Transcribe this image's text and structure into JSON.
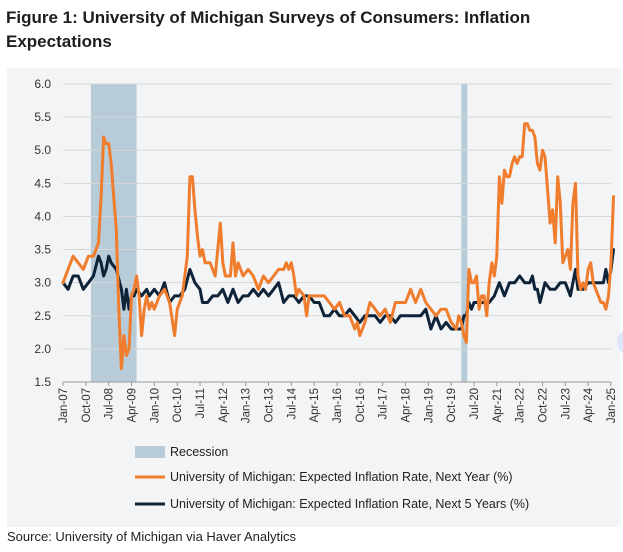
{
  "title": "Figure 1: University of Michigan Surveys of Consumers: Inflation Expectations",
  "source": "Source: University of Michigan via Haver Analytics",
  "colors": {
    "next_year": "#ef7d2d",
    "next_5_years": "#0e2238",
    "recession": "#b7ccd8",
    "grid": "#d6d6d6",
    "background": "#f3f4f6"
  },
  "chart_data": {
    "type": "line",
    "title": "Figure 1: University of Michigan Surveys of Consumers: Inflation Expectations",
    "xlabel": "",
    "ylabel": "",
    "ylim": [
      1.5,
      6.0
    ],
    "yticks": [
      "6.0",
      "5.5",
      "5.0",
      "4.5",
      "4.0",
      "3.5",
      "3.0",
      "2.5",
      "2.0",
      "1.5"
    ],
    "x_range": [
      "Jan-07",
      "Jan-25"
    ],
    "xticks": [
      "Jan-07",
      "Oct-07",
      "Jul-08",
      "Apr-09",
      "Jan-10",
      "Oct-10",
      "Jul-11",
      "Apr-12",
      "Jan-13",
      "Oct-13",
      "Jul-14",
      "Apr-15",
      "Jan-16",
      "Oct-16",
      "Jul-17",
      "Apr-18",
      "Jan-19",
      "Oct-19",
      "Jul-20",
      "Apr-21",
      "Jan-22",
      "Oct-22",
      "Jul-23",
      "Apr-24",
      "Jan-25"
    ],
    "grid": true,
    "legend": "bottom",
    "recessions": [
      {
        "label": "Recession",
        "start": "Dec-07",
        "end": "Jun-09"
      },
      {
        "label": "Recession",
        "start": "Feb-20",
        "end": "Apr-20"
      }
    ],
    "series": [
      {
        "name": "University of Michigan: Expected Inflation Rate, Next Year (%)",
        "points": [
          [
            "Jan-07",
            3.0
          ],
          [
            "Mar-07",
            3.2
          ],
          [
            "May-07",
            3.4
          ],
          [
            "Jul-07",
            3.3
          ],
          [
            "Sep-07",
            3.2
          ],
          [
            "Nov-07",
            3.4
          ],
          [
            "Jan-08",
            3.4
          ],
          [
            "Mar-08",
            3.6
          ],
          [
            "Apr-08",
            4.3
          ],
          [
            "May-08",
            5.2
          ],
          [
            "Jun-08",
            5.1
          ],
          [
            "Jul-08",
            5.1
          ],
          [
            "Aug-08",
            4.8
          ],
          [
            "Sep-08",
            4.3
          ],
          [
            "Oct-08",
            3.8
          ],
          [
            "Nov-08",
            2.6
          ],
          [
            "Dec-08",
            1.7
          ],
          [
            "Jan-09",
            2.2
          ],
          [
            "Feb-09",
            1.9
          ],
          [
            "Mar-09",
            2.0
          ],
          [
            "Apr-09",
            2.8
          ],
          [
            "May-09",
            2.9
          ],
          [
            "Jun-09",
            3.1
          ],
          [
            "Jul-09",
            2.8
          ],
          [
            "Aug-09",
            2.2
          ],
          [
            "Sep-09",
            2.6
          ],
          [
            "Oct-09",
            2.8
          ],
          [
            "Nov-09",
            2.6
          ],
          [
            "Dec-09",
            2.7
          ],
          [
            "Jan-10",
            2.6
          ],
          [
            "Mar-10",
            2.8
          ],
          [
            "May-10",
            2.9
          ],
          [
            "Jul-10",
            2.7
          ],
          [
            "Sep-10",
            2.2
          ],
          [
            "Oct-10",
            2.6
          ],
          [
            "Dec-10",
            2.8
          ],
          [
            "Feb-11",
            3.4
          ],
          [
            "Mar-11",
            4.6
          ],
          [
            "Apr-11",
            4.6
          ],
          [
            "May-11",
            4.1
          ],
          [
            "Jun-11",
            3.7
          ],
          [
            "Jul-11",
            3.4
          ],
          [
            "Aug-11",
            3.5
          ],
          [
            "Sep-11",
            3.3
          ],
          [
            "Nov-11",
            3.3
          ],
          [
            "Jan-12",
            3.1
          ],
          [
            "Mar-12",
            3.9
          ],
          [
            "Apr-12",
            3.3
          ],
          [
            "May-12",
            3.1
          ],
          [
            "Jul-12",
            3.1
          ],
          [
            "Aug-12",
            3.6
          ],
          [
            "Sep-12",
            3.1
          ],
          [
            "Oct-12",
            3.3
          ],
          [
            "Dec-12",
            3.1
          ],
          [
            "Feb-13",
            3.2
          ],
          [
            "Apr-13",
            3.1
          ],
          [
            "Jun-13",
            2.9
          ],
          [
            "Aug-13",
            3.1
          ],
          [
            "Oct-13",
            3.0
          ],
          [
            "Dec-13",
            3.1
          ],
          [
            "Feb-14",
            3.2
          ],
          [
            "Apr-14",
            3.2
          ],
          [
            "May-14",
            3.3
          ],
          [
            "Jun-14",
            3.2
          ],
          [
            "Jul-14",
            3.3
          ],
          [
            "Aug-14",
            3.1
          ],
          [
            "Sep-14",
            2.8
          ],
          [
            "Oct-14",
            2.9
          ],
          [
            "Dec-14",
            2.8
          ],
          [
            "Jan-15",
            2.5
          ],
          [
            "Feb-15",
            2.8
          ],
          [
            "Apr-15",
            2.8
          ],
          [
            "Jun-15",
            2.8
          ],
          [
            "Aug-15",
            2.8
          ],
          [
            "Oct-15",
            2.7
          ],
          [
            "Dec-15",
            2.6
          ],
          [
            "Feb-16",
            2.7
          ],
          [
            "Apr-16",
            2.5
          ],
          [
            "Jun-16",
            2.5
          ],
          [
            "Aug-16",
            2.3
          ],
          [
            "Sep-16",
            2.4
          ],
          [
            "Oct-16",
            2.2
          ],
          [
            "Dec-16",
            2.4
          ],
          [
            "Feb-17",
            2.7
          ],
          [
            "Apr-17",
            2.6
          ],
          [
            "Jun-17",
            2.5
          ],
          [
            "Aug-17",
            2.6
          ],
          [
            "Oct-17",
            2.4
          ],
          [
            "Dec-17",
            2.7
          ],
          [
            "Feb-18",
            2.7
          ],
          [
            "Apr-18",
            2.7
          ],
          [
            "Jun-18",
            2.9
          ],
          [
            "Aug-18",
            2.7
          ],
          [
            "Oct-18",
            2.9
          ],
          [
            "Nov-18",
            2.8
          ],
          [
            "Dec-18",
            2.7
          ],
          [
            "Feb-19",
            2.6
          ],
          [
            "Apr-19",
            2.5
          ],
          [
            "Jun-19",
            2.6
          ],
          [
            "Aug-19",
            2.6
          ],
          [
            "Oct-19",
            2.4
          ],
          [
            "Dec-19",
            2.3
          ],
          [
            "Jan-20",
            2.5
          ],
          [
            "Feb-20",
            2.4
          ],
          [
            "Mar-20",
            2.2
          ],
          [
            "Apr-20",
            2.1
          ],
          [
            "May-20",
            3.2
          ],
          [
            "Jun-20",
            3.0
          ],
          [
            "Jul-20",
            3.0
          ],
          [
            "Aug-20",
            3.1
          ],
          [
            "Sep-20",
            2.6
          ],
          [
            "Oct-20",
            2.8
          ],
          [
            "Nov-20",
            2.8
          ],
          [
            "Dec-20",
            2.5
          ],
          [
            "Jan-21",
            3.0
          ],
          [
            "Feb-21",
            3.3
          ],
          [
            "Mar-21",
            3.1
          ],
          [
            "Apr-21",
            3.4
          ],
          [
            "May-21",
            4.6
          ],
          [
            "Jun-21",
            4.2
          ],
          [
            "Jul-21",
            4.7
          ],
          [
            "Aug-21",
            4.6
          ],
          [
            "Sep-21",
            4.6
          ],
          [
            "Oct-21",
            4.8
          ],
          [
            "Nov-21",
            4.9
          ],
          [
            "Dec-21",
            4.8
          ],
          [
            "Jan-22",
            4.9
          ],
          [
            "Feb-22",
            4.9
          ],
          [
            "Mar-22",
            5.4
          ],
          [
            "Apr-22",
            5.4
          ],
          [
            "May-22",
            5.3
          ],
          [
            "Jun-22",
            5.3
          ],
          [
            "Jul-22",
            5.2
          ],
          [
            "Aug-22",
            4.8
          ],
          [
            "Sep-22",
            4.7
          ],
          [
            "Oct-22",
            5.0
          ],
          [
            "Nov-22",
            4.9
          ],
          [
            "Dec-22",
            4.4
          ],
          [
            "Jan-23",
            3.9
          ],
          [
            "Feb-23",
            4.1
          ],
          [
            "Mar-23",
            3.6
          ],
          [
            "Apr-23",
            4.6
          ],
          [
            "May-23",
            4.2
          ],
          [
            "Jun-23",
            3.3
          ],
          [
            "Jul-23",
            3.4
          ],
          [
            "Aug-23",
            3.5
          ],
          [
            "Sep-23",
            3.2
          ],
          [
            "Oct-23",
            4.2
          ],
          [
            "Nov-23",
            4.5
          ],
          [
            "Dec-23",
            3.1
          ],
          [
            "Jan-24",
            2.9
          ],
          [
            "Feb-24",
            3.0
          ],
          [
            "Mar-24",
            2.9
          ],
          [
            "Apr-24",
            3.2
          ],
          [
            "May-24",
            3.3
          ],
          [
            "Jun-24",
            3.0
          ],
          [
            "Jul-24",
            2.9
          ],
          [
            "Aug-24",
            2.8
          ],
          [
            "Sep-24",
            2.7
          ],
          [
            "Oct-24",
            2.7
          ],
          [
            "Nov-24",
            2.6
          ],
          [
            "Dec-24",
            2.8
          ],
          [
            "Jan-25",
            3.3
          ],
          [
            "Feb-25",
            4.3
          ]
        ]
      },
      {
        "name": "University of Michigan: Expected Inflation Rate, Next 5 Years (%)",
        "points": [
          [
            "Jan-07",
            3.0
          ],
          [
            "Mar-07",
            2.9
          ],
          [
            "May-07",
            3.1
          ],
          [
            "Jul-07",
            3.1
          ],
          [
            "Sep-07",
            2.9
          ],
          [
            "Nov-07",
            3.0
          ],
          [
            "Jan-08",
            3.1
          ],
          [
            "Mar-08",
            3.4
          ],
          [
            "Apr-08",
            3.3
          ],
          [
            "May-08",
            3.1
          ],
          [
            "Jun-08",
            3.2
          ],
          [
            "Jul-08",
            3.4
          ],
          [
            "Aug-08",
            3.3
          ],
          [
            "Oct-08",
            3.2
          ],
          [
            "Dec-08",
            2.9
          ],
          [
            "Jan-09",
            2.6
          ],
          [
            "Feb-09",
            2.9
          ],
          [
            "Mar-09",
            2.6
          ],
          [
            "Apr-09",
            2.8
          ],
          [
            "May-09",
            2.8
          ],
          [
            "Jun-09",
            2.9
          ],
          [
            "Aug-09",
            2.8
          ],
          [
            "Oct-09",
            2.9
          ],
          [
            "Nov-09",
            2.8
          ],
          [
            "Jan-10",
            2.9
          ],
          [
            "Mar-10",
            2.8
          ],
          [
            "May-10",
            3.0
          ],
          [
            "Jul-10",
            2.7
          ],
          [
            "Sep-10",
            2.8
          ],
          [
            "Nov-10",
            2.8
          ],
          [
            "Jan-11",
            2.9
          ],
          [
            "Mar-11",
            3.2
          ],
          [
            "May-11",
            3.0
          ],
          [
            "Jul-11",
            2.9
          ],
          [
            "Aug-11",
            2.7
          ],
          [
            "Oct-11",
            2.7
          ],
          [
            "Dec-11",
            2.8
          ],
          [
            "Feb-12",
            2.8
          ],
          [
            "Apr-12",
            2.9
          ],
          [
            "Jun-12",
            2.7
          ],
          [
            "Aug-12",
            2.9
          ],
          [
            "Oct-12",
            2.7
          ],
          [
            "Dec-12",
            2.8
          ],
          [
            "Feb-13",
            2.8
          ],
          [
            "Apr-13",
            2.9
          ],
          [
            "Jun-13",
            2.8
          ],
          [
            "Aug-13",
            2.9
          ],
          [
            "Oct-13",
            2.8
          ],
          [
            "Dec-13",
            2.9
          ],
          [
            "Feb-14",
            3.0
          ],
          [
            "Apr-14",
            2.7
          ],
          [
            "Jun-14",
            2.8
          ],
          [
            "Aug-14",
            2.8
          ],
          [
            "Oct-14",
            2.7
          ],
          [
            "Dec-14",
            2.8
          ],
          [
            "Feb-15",
            2.8
          ],
          [
            "Apr-15",
            2.7
          ],
          [
            "Jun-15",
            2.7
          ],
          [
            "Aug-15",
            2.5
          ],
          [
            "Oct-15",
            2.5
          ],
          [
            "Dec-15",
            2.6
          ],
          [
            "Feb-16",
            2.5
          ],
          [
            "Apr-16",
            2.5
          ],
          [
            "Jun-16",
            2.6
          ],
          [
            "Aug-16",
            2.5
          ],
          [
            "Oct-16",
            2.4
          ],
          [
            "Dec-16",
            2.5
          ],
          [
            "Feb-17",
            2.5
          ],
          [
            "Apr-17",
            2.5
          ],
          [
            "Jun-17",
            2.4
          ],
          [
            "Aug-17",
            2.5
          ],
          [
            "Oct-17",
            2.5
          ],
          [
            "Dec-17",
            2.4
          ],
          [
            "Feb-18",
            2.5
          ],
          [
            "Apr-18",
            2.5
          ],
          [
            "Jun-18",
            2.5
          ],
          [
            "Aug-18",
            2.5
          ],
          [
            "Oct-18",
            2.5
          ],
          [
            "Dec-18",
            2.6
          ],
          [
            "Feb-19",
            2.3
          ],
          [
            "Apr-19",
            2.5
          ],
          [
            "Jun-19",
            2.3
          ],
          [
            "Aug-19",
            2.4
          ],
          [
            "Oct-19",
            2.3
          ],
          [
            "Dec-19",
            2.3
          ],
          [
            "Feb-20",
            2.3
          ],
          [
            "Mar-20",
            2.5
          ],
          [
            "Apr-20",
            2.5
          ],
          [
            "May-20",
            2.7
          ],
          [
            "Jun-20",
            2.6
          ],
          [
            "Jul-20",
            2.7
          ],
          [
            "Sep-20",
            2.7
          ],
          [
            "Nov-20",
            2.7
          ],
          [
            "Jan-21",
            2.7
          ],
          [
            "Mar-21",
            2.8
          ],
          [
            "May-21",
            3.0
          ],
          [
            "Jul-21",
            2.8
          ],
          [
            "Sep-21",
            3.0
          ],
          [
            "Nov-21",
            3.0
          ],
          [
            "Jan-22",
            3.1
          ],
          [
            "Mar-22",
            3.0
          ],
          [
            "May-22",
            3.0
          ],
          [
            "Jun-22",
            3.1
          ],
          [
            "Jul-22",
            2.9
          ],
          [
            "Aug-22",
            2.9
          ],
          [
            "Sep-22",
            2.7
          ],
          [
            "Nov-22",
            3.0
          ],
          [
            "Jan-23",
            2.9
          ],
          [
            "Mar-23",
            2.9
          ],
          [
            "May-23",
            3.0
          ],
          [
            "Jul-23",
            3.0
          ],
          [
            "Sep-23",
            2.8
          ],
          [
            "Oct-23",
            3.0
          ],
          [
            "Nov-23",
            3.2
          ],
          [
            "Dec-23",
            2.9
          ],
          [
            "Feb-24",
            2.9
          ],
          [
            "Apr-24",
            3.0
          ],
          [
            "Jun-24",
            3.0
          ],
          [
            "Aug-24",
            3.0
          ],
          [
            "Oct-24",
            3.0
          ],
          [
            "Nov-24",
            3.2
          ],
          [
            "Dec-24",
            3.0
          ],
          [
            "Jan-25",
            3.2
          ],
          [
            "Feb-25",
            3.5
          ]
        ]
      }
    ]
  }
}
